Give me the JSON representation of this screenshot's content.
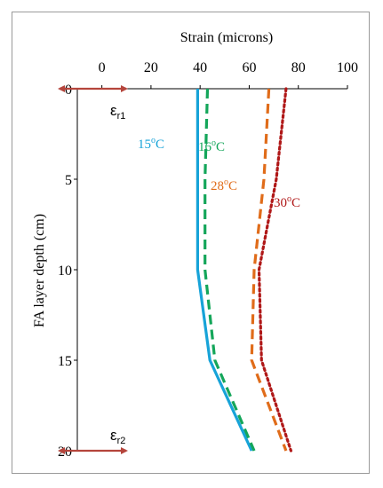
{
  "chart_data": {
    "type": "line",
    "xlabel": "Strain (microns)",
    "ylabel": "FA layer depth (cm)",
    "x_axis_position": "top",
    "y_axis_inverted": true,
    "xlim": [
      -10,
      100
    ],
    "ylim": [
      0,
      20
    ],
    "x_ticks": [
      "0",
      "20",
      "40",
      "60",
      "80",
      "100"
    ],
    "y_ticks": [
      "0",
      "5",
      "10",
      "15",
      "20"
    ],
    "grid": false,
    "series": [
      {
        "name": "15",
        "unit": "oC",
        "color": "#17a3d8",
        "style": "solid",
        "points": [
          [
            39,
            0
          ],
          [
            39,
            5
          ],
          [
            39,
            10
          ],
          [
            44,
            15
          ],
          [
            61,
            20
          ]
        ]
      },
      {
        "name": "16",
        "unit": "oC",
        "color": "#14a65a",
        "style": "dashed",
        "points": [
          [
            43,
            0
          ],
          [
            42,
            5
          ],
          [
            42,
            10
          ],
          [
            46,
            15
          ],
          [
            62,
            20
          ]
        ]
      },
      {
        "name": "28",
        "unit": "oC",
        "color": "#e06c1a",
        "style": "dashed",
        "points": [
          [
            68,
            0
          ],
          [
            66,
            5
          ],
          [
            62,
            10
          ],
          [
            61,
            15
          ],
          [
            75,
            20
          ]
        ]
      },
      {
        "name": "30",
        "unit": "oC",
        "color": "#b01818",
        "style": "dotted",
        "points": [
          [
            75,
            0
          ],
          [
            71,
            5
          ],
          [
            64,
            10
          ],
          [
            65,
            15
          ],
          [
            77,
            20
          ]
        ]
      }
    ],
    "annotations": [
      {
        "text": "ε",
        "sub": "r1",
        "depth": 0
      },
      {
        "text": "ε",
        "sub": "r2",
        "depth": 20
      }
    ],
    "arrow_color": "#b5453c"
  }
}
